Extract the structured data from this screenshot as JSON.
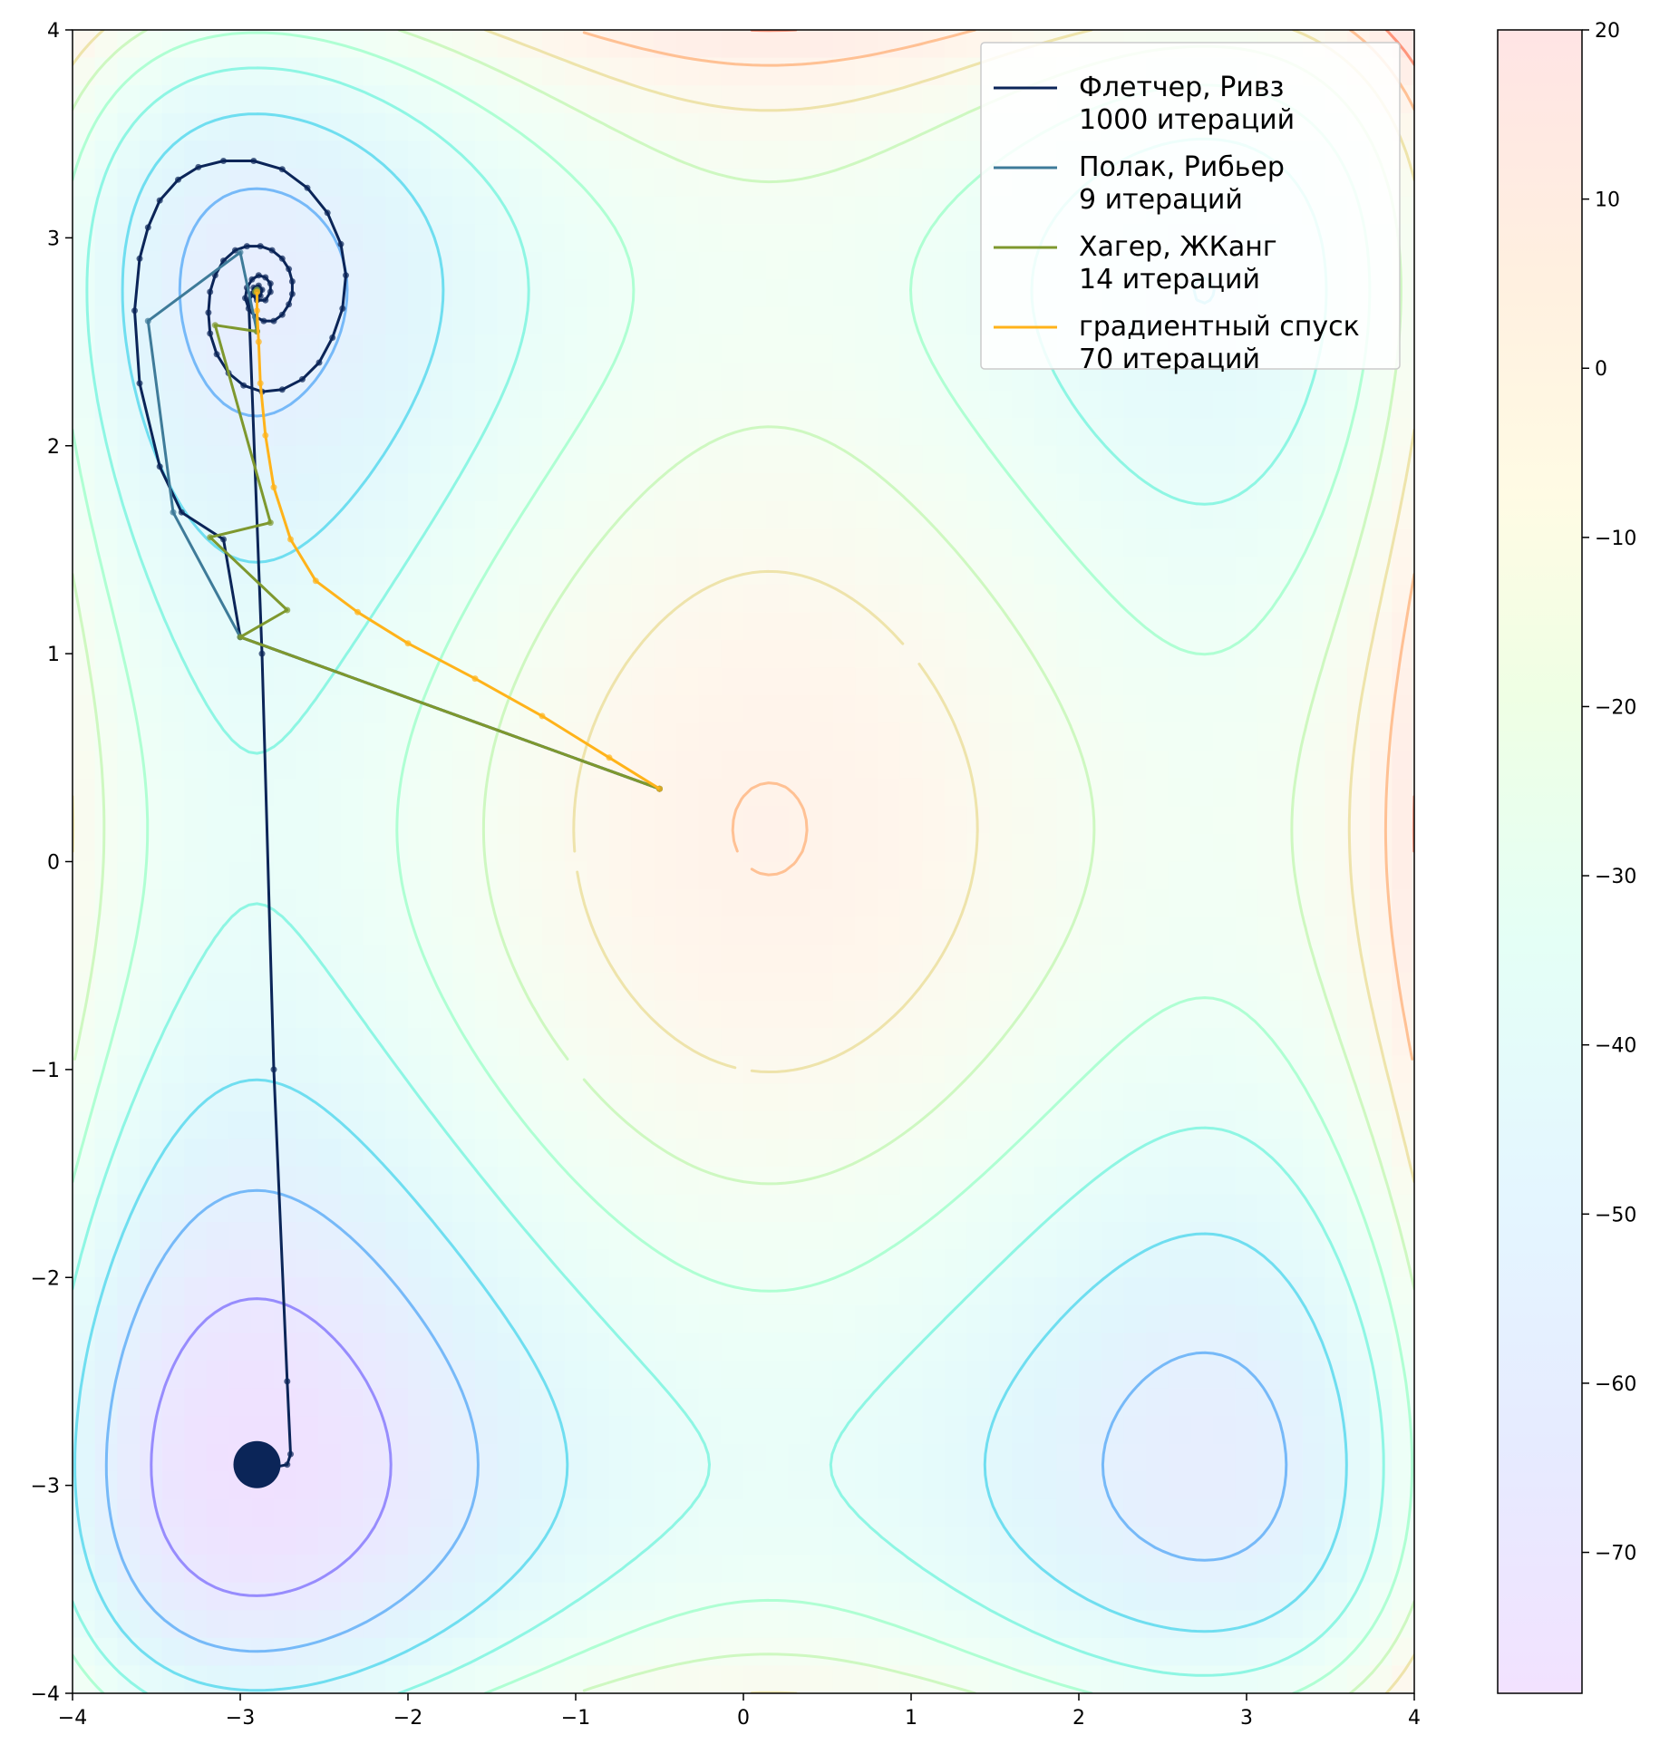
{
  "chart_data": {
    "type": "contour",
    "function": "styblinski-tang",
    "xlim": [
      -4,
      4
    ],
    "ylim": [
      -4,
      4
    ],
    "x_ticks": [
      -4,
      -3,
      -2,
      -1,
      0,
      1,
      2,
      3,
      4
    ],
    "y_ticks": [
      -4,
      -3,
      -2,
      -1,
      0,
      1,
      2,
      3,
      4
    ],
    "colorbar": {
      "range": [
        -78.33,
        20
      ],
      "ticks": [
        20,
        10,
        0,
        -10,
        -20,
        -30,
        -40,
        -50,
        -60,
        -70
      ],
      "colormap": "rainbow"
    },
    "contour_levels": [
      -70,
      -60,
      -50,
      -40,
      -30,
      -20,
      -10,
      0,
      10
    ],
    "legend_position": "top-right",
    "series": [
      {
        "name": "Флетчер, Ривз",
        "iterations_label": "1000 итераций",
        "color": "#0b2558",
        "points": [
          [
            -0.5,
            0.35
          ],
          [
            -3,
            1.08
          ],
          [
            -3.1,
            1.55
          ],
          [
            -3.35,
            1.68
          ],
          [
            -3.48,
            1.9
          ],
          [
            -3.6,
            2.3
          ],
          [
            -3.63,
            2.65
          ],
          [
            -3.6,
            2.9
          ],
          [
            -3.55,
            3.05
          ],
          [
            -3.48,
            3.18
          ],
          [
            -3.37,
            3.28
          ],
          [
            -3.25,
            3.34
          ],
          [
            -3.1,
            3.37
          ],
          [
            -2.92,
            3.37
          ],
          [
            -2.75,
            3.33
          ],
          [
            -2.6,
            3.24
          ],
          [
            -2.48,
            3.12
          ],
          [
            -2.4,
            2.97
          ],
          [
            -2.37,
            2.82
          ],
          [
            -2.39,
            2.66
          ],
          [
            -2.45,
            2.52
          ],
          [
            -2.53,
            2.4
          ],
          [
            -2.63,
            2.32
          ],
          [
            -2.75,
            2.27
          ],
          [
            -2.87,
            2.26
          ],
          [
            -2.98,
            2.29
          ],
          [
            -3.07,
            2.35
          ],
          [
            -3.14,
            2.44
          ],
          [
            -3.18,
            2.54
          ],
          [
            -3.19,
            2.64
          ],
          [
            -3.18,
            2.74
          ],
          [
            -3.15,
            2.82
          ],
          [
            -3.1,
            2.89
          ],
          [
            -3.03,
            2.94
          ],
          [
            -2.96,
            2.96
          ],
          [
            -2.88,
            2.96
          ],
          [
            -2.81,
            2.94
          ],
          [
            -2.75,
            2.9
          ],
          [
            -2.71,
            2.85
          ],
          [
            -2.69,
            2.79
          ],
          [
            -2.69,
            2.73
          ],
          [
            -2.71,
            2.68
          ],
          [
            -2.75,
            2.63
          ],
          [
            -2.8,
            2.6
          ],
          [
            -2.86,
            2.6
          ],
          [
            -2.91,
            2.62
          ],
          [
            -2.95,
            2.66
          ],
          [
            -2.97,
            2.71
          ],
          [
            -2.96,
            2.76
          ],
          [
            -2.93,
            2.8
          ],
          [
            -2.89,
            2.82
          ],
          [
            -2.85,
            2.81
          ],
          [
            -2.82,
            2.78
          ],
          [
            -2.82,
            2.74
          ],
          [
            -2.85,
            2.7
          ],
          [
            -2.9,
            2.7
          ],
          [
            -2.93,
            2.73
          ],
          [
            -2.92,
            2.76
          ],
          [
            -2.89,
            2.77
          ],
          [
            -2.87,
            2.75
          ],
          [
            -2.88,
            2.72
          ],
          [
            -2.9,
            2.72
          ],
          [
            -2.91,
            2.74
          ],
          [
            -2.95,
            2.7
          ],
          [
            -2.87,
            1.0
          ],
          [
            -2.8,
            -1.0
          ],
          [
            -2.72,
            -2.5
          ],
          [
            -2.7,
            -2.85
          ],
          [
            -2.72,
            -2.9
          ],
          [
            -2.9,
            -2.93
          ]
        ]
      },
      {
        "name": "Полак, Рибьер",
        "iterations_label": "9 итераций",
        "color": "#3e7b99",
        "points": [
          [
            -0.5,
            0.35
          ],
          [
            -3.0,
            1.08
          ],
          [
            -3.4,
            1.68
          ],
          [
            -3.55,
            2.6
          ],
          [
            -3.0,
            2.93
          ],
          [
            -2.9,
            2.55
          ],
          [
            -2.9,
            2.75
          ],
          [
            -2.91,
            2.74
          ],
          [
            -2.9,
            2.74
          ]
        ]
      },
      {
        "name": "Хагер, ЖКанг",
        "iterations_label": "14 итераций",
        "color": "#7e982e",
        "points": [
          [
            -0.5,
            0.35
          ],
          [
            -3.0,
            1.08
          ],
          [
            -2.72,
            1.21
          ],
          [
            -3.18,
            1.56
          ],
          [
            -2.82,
            1.63
          ],
          [
            -3.15,
            2.58
          ],
          [
            -2.9,
            2.55
          ],
          [
            -2.9,
            2.75
          ],
          [
            -2.91,
            2.74
          ],
          [
            -2.9,
            2.74
          ]
        ]
      },
      {
        "name": "градиентный спуск",
        "iterations_label": "70 итераций",
        "color": "#ffb31a",
        "points": [
          [
            -0.5,
            0.35
          ],
          [
            -0.8,
            0.5
          ],
          [
            -1.2,
            0.7
          ],
          [
            -1.6,
            0.88
          ],
          [
            -2.0,
            1.05
          ],
          [
            -2.3,
            1.2
          ],
          [
            -2.55,
            1.35
          ],
          [
            -2.7,
            1.55
          ],
          [
            -2.8,
            1.8
          ],
          [
            -2.85,
            2.05
          ],
          [
            -2.88,
            2.3
          ],
          [
            -2.89,
            2.5
          ],
          [
            -2.9,
            2.65
          ],
          [
            -2.9,
            2.74
          ]
        ]
      }
    ]
  }
}
